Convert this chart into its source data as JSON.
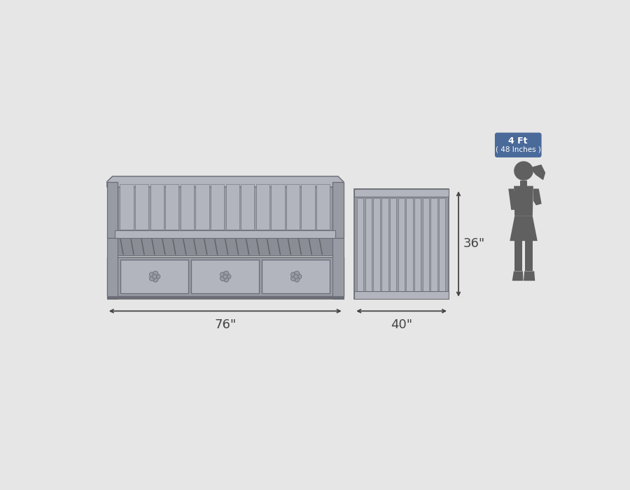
{
  "bg_color": "#e6e6e6",
  "bed_color": "#989ba4",
  "bed_dark": "#6a6d75",
  "bed_light": "#b2b5be",
  "bed_inner": "#a8abb4",
  "silhouette_color": "#606060",
  "dim_color": "#444444",
  "label_76": "76\"",
  "label_40": "40\"",
  "label_36": "36\"",
  "label_4ft": "4 Ft",
  "label_48in": "( 48 Inches )",
  "badge_color": "#4a6a9a",
  "badge_text_color": "#ffffff"
}
